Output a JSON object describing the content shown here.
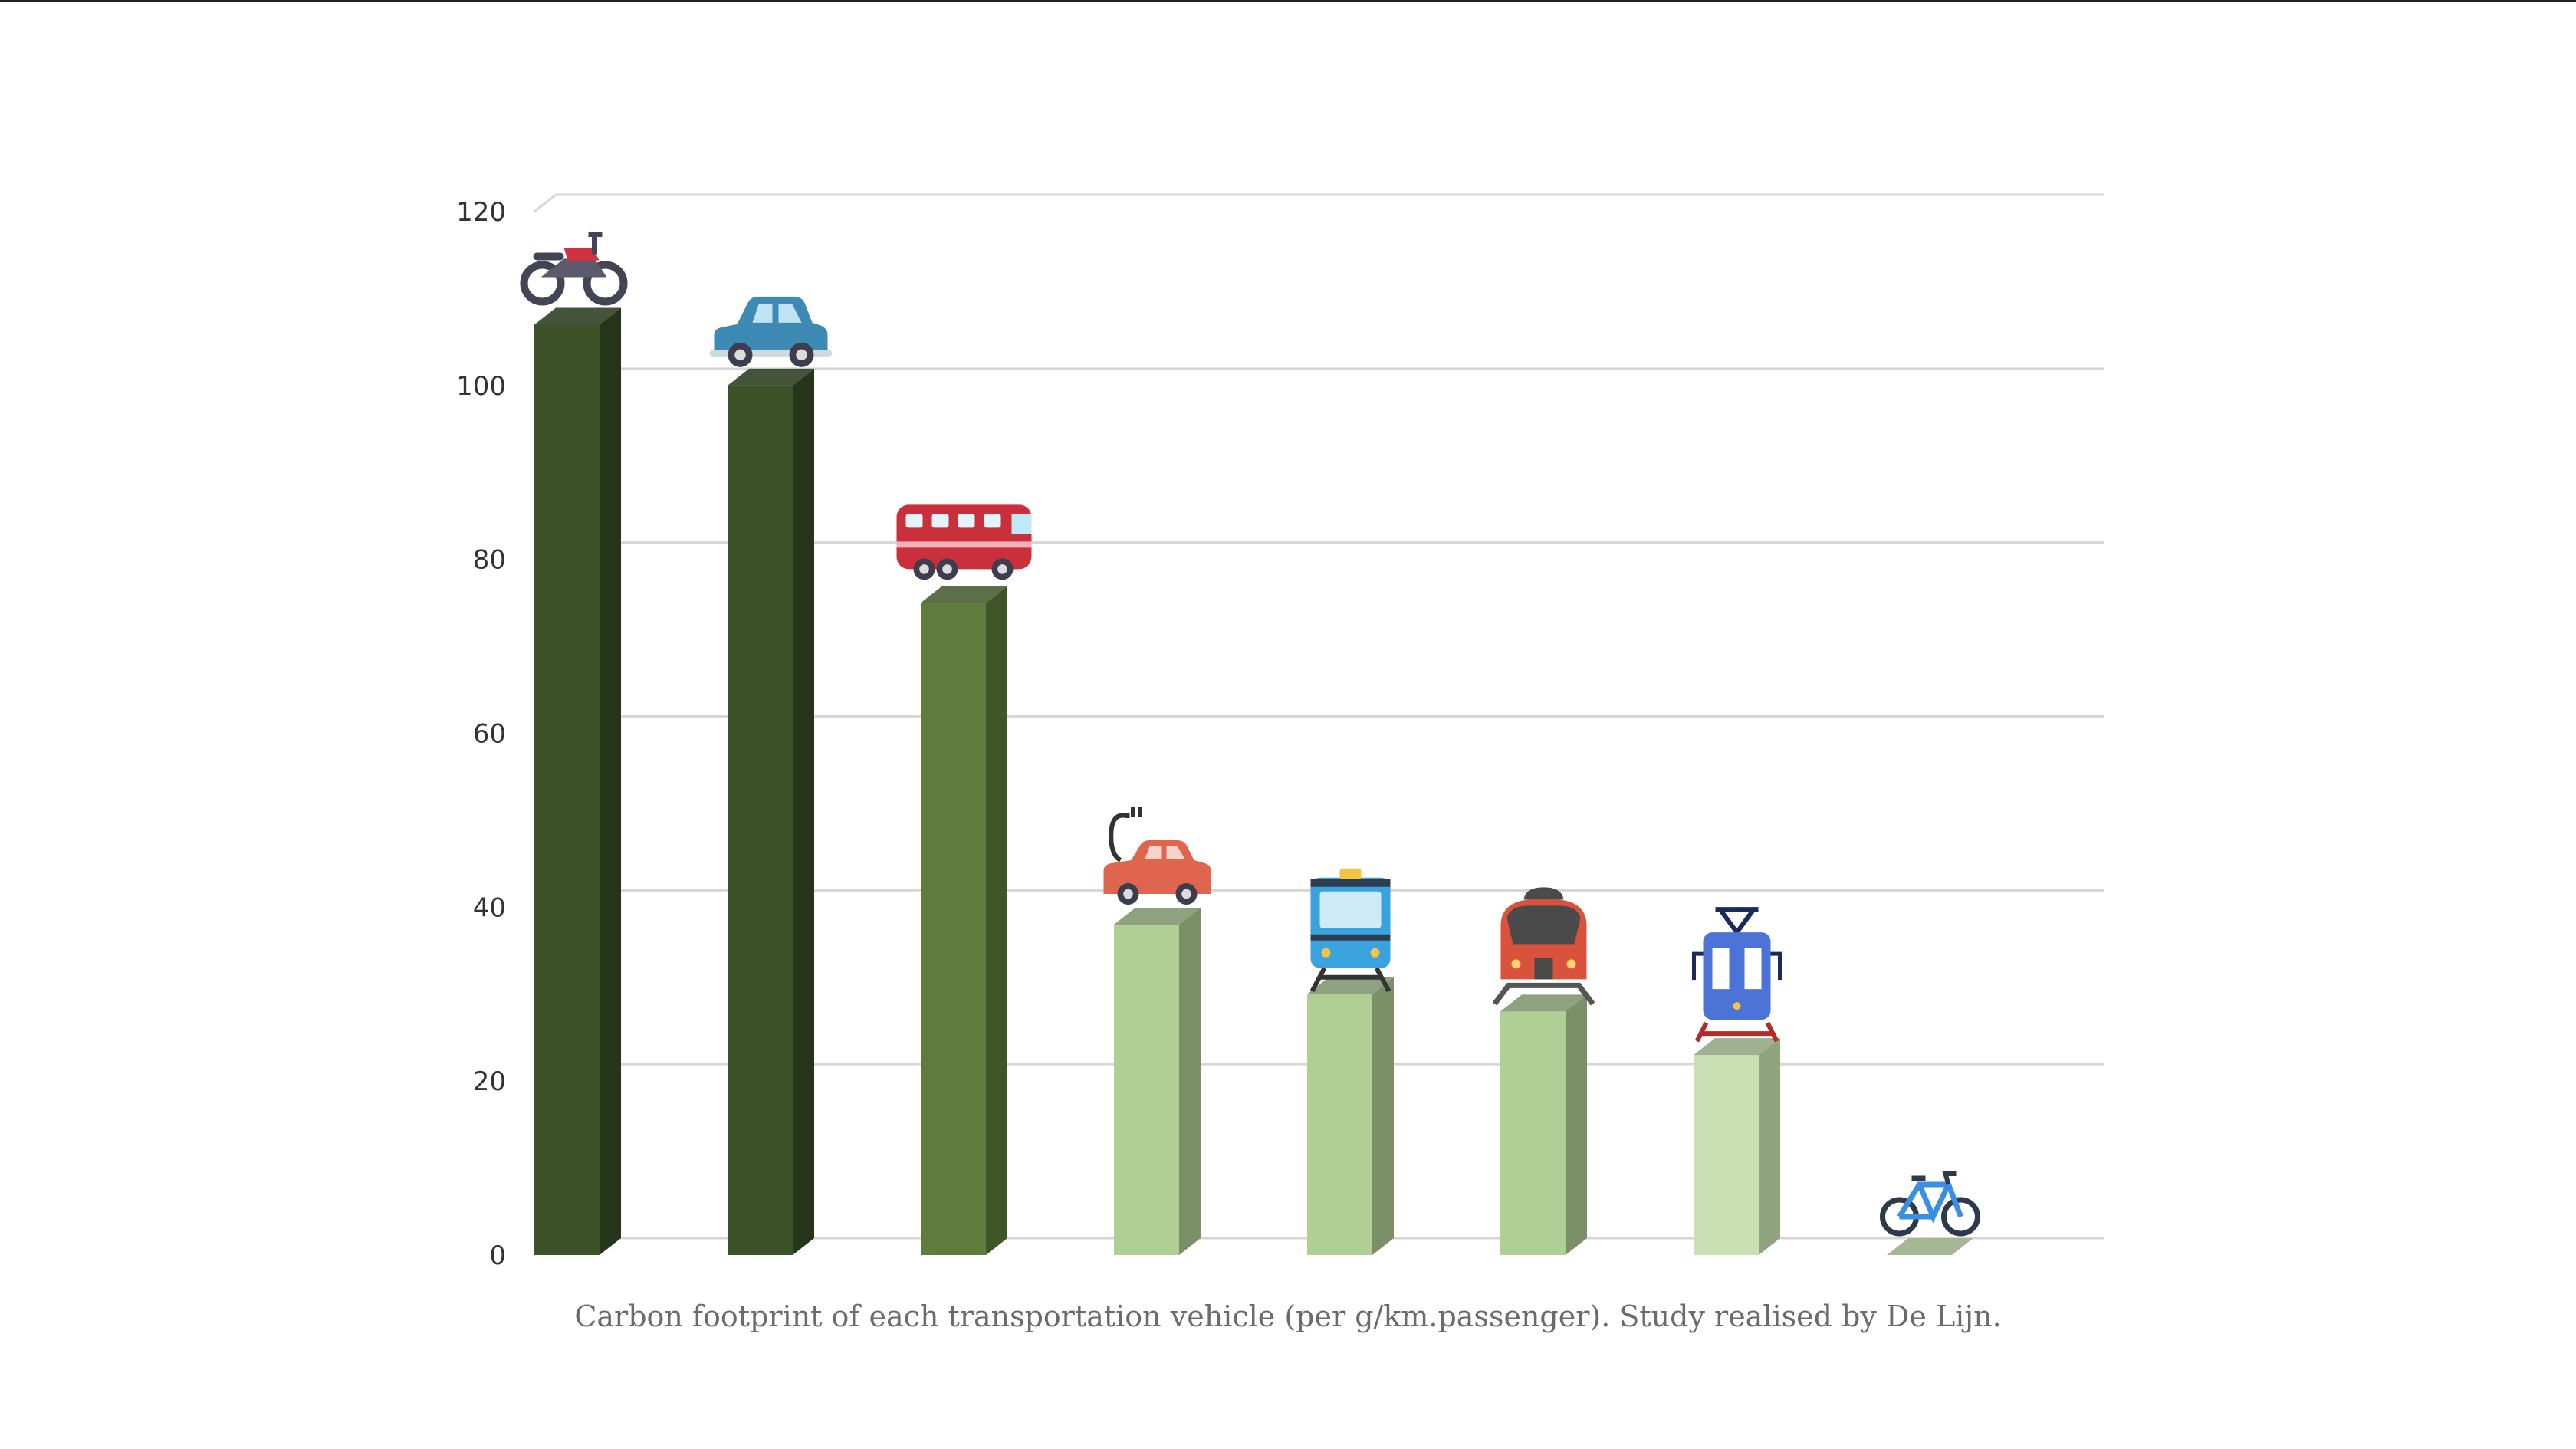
{
  "caption": "Carbon footprint of each transportation vehicle (per g/km.passenger). Study realised by De Lijn.",
  "chart_data": {
    "type": "bar",
    "categories": [
      "",
      "",
      "",
      "",
      "",
      "",
      "",
      ""
    ],
    "values": [
      107,
      100,
      75,
      38,
      30,
      28,
      23,
      0
    ],
    "icons": [
      "motorcycle-icon",
      "car-icon",
      "bus-icon",
      "electric-car-icon",
      "train-icon",
      "high-speed-train-icon",
      "tram-icon",
      "bicycle-icon"
    ],
    "yticks": [
      0,
      20,
      40,
      60,
      80,
      100,
      120
    ],
    "ylim": [
      0,
      120
    ],
    "grid": true,
    "colors": {
      "front": [
        "#3c5228",
        "#3c5228",
        "#5e7d3c",
        "#b0cf94",
        "#b0cf94",
        "#b0cf94",
        "#c8e0b4",
        "#a5b896"
      ],
      "side": [
        "#26351a",
        "#26351a",
        "#3f5628",
        "#7b9068",
        "#7b9068",
        "#7b9068",
        "#8ea37e",
        "#8ea37e"
      ],
      "grid": "#d6d6d6"
    }
  }
}
